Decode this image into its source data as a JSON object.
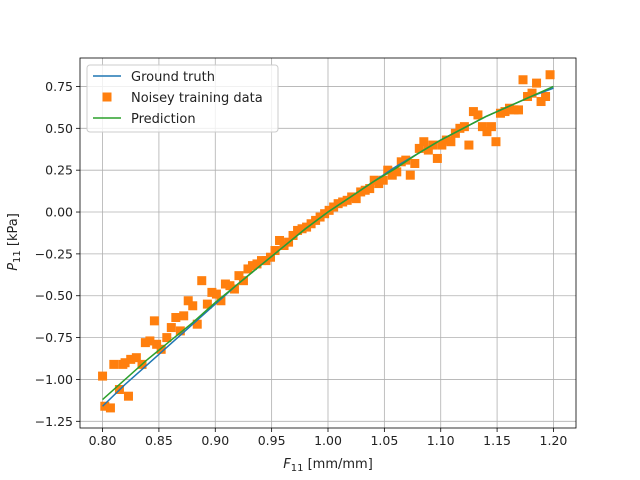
{
  "chart_data": {
    "type": "line",
    "xlabel_main": "F",
    "xlabel_sub": "11",
    "xlabel_unit": " [mm/mm]",
    "ylabel_main": "P",
    "ylabel_sub": "11",
    "ylabel_unit": " [kPa]",
    "xlim": [
      0.78,
      1.22
    ],
    "ylim": [
      -1.29,
      0.92
    ],
    "xticks": [
      0.8,
      0.85,
      0.9,
      0.95,
      1.0,
      1.05,
      1.1,
      1.15,
      1.2
    ],
    "xtick_labels": [
      "0.80",
      "0.85",
      "0.90",
      "0.95",
      "1.00",
      "1.05",
      "1.10",
      "1.15",
      "1.20"
    ],
    "yticks": [
      -1.25,
      -1.0,
      -0.75,
      -0.5,
      -0.25,
      0.0,
      0.25,
      0.5,
      0.75
    ],
    "ytick_labels": [
      "−1.25",
      "−1.00",
      "−0.75",
      "−0.50",
      "−0.25",
      "0.00",
      "0.25",
      "0.50",
      "0.75"
    ],
    "grid": true,
    "legend_position": "top-left",
    "series": [
      {
        "name": "Ground truth",
        "style": "line",
        "color": "#1f77b4",
        "x": [
          0.8,
          0.82,
          0.84,
          0.86,
          0.88,
          0.9,
          0.92,
          0.94,
          0.96,
          0.98,
          1.0,
          1.02,
          1.04,
          1.06,
          1.08,
          1.1,
          1.12,
          1.14,
          1.16,
          1.18,
          1.2
        ],
        "y": [
          -1.16,
          -1.03,
          -0.91,
          -0.79,
          -0.67,
          -0.55,
          -0.43,
          -0.32,
          -0.21,
          -0.1,
          0.0,
          0.09,
          0.18,
          0.27,
          0.35,
          0.43,
          0.5,
          0.57,
          0.63,
          0.69,
          0.74
        ]
      },
      {
        "name": "Noisey training data",
        "style": "markers",
        "color": "#ff7f0e",
        "x": [
          0.8,
          0.802,
          0.807,
          0.81,
          0.815,
          0.818,
          0.82,
          0.823,
          0.825,
          0.83,
          0.835,
          0.838,
          0.842,
          0.846,
          0.848,
          0.852,
          0.857,
          0.861,
          0.865,
          0.869,
          0.872,
          0.876,
          0.88,
          0.884,
          0.888,
          0.893,
          0.897,
          0.901,
          0.905,
          0.909,
          0.913,
          0.917,
          0.921,
          0.925,
          0.929,
          0.933,
          0.937,
          0.941,
          0.945,
          0.949,
          0.953,
          0.957,
          0.961,
          0.965,
          0.969,
          0.973,
          0.977,
          0.981,
          0.985,
          0.989,
          0.993,
          0.997,
          1.001,
          1.005,
          1.009,
          1.013,
          1.017,
          1.021,
          1.025,
          1.029,
          1.033,
          1.037,
          1.041,
          1.045,
          1.049,
          1.053,
          1.057,
          1.061,
          1.065,
          1.069,
          1.073,
          1.077,
          1.081,
          1.085,
          1.089,
          1.093,
          1.097,
          1.101,
          1.105,
          1.109,
          1.113,
          1.117,
          1.121,
          1.125,
          1.129,
          1.133,
          1.137,
          1.141,
          1.145,
          1.149,
          1.153,
          1.157,
          1.161,
          1.165,
          1.169,
          1.173,
          1.177,
          1.181,
          1.185,
          1.189,
          1.193,
          1.197
        ],
        "y": [
          -0.98,
          -1.16,
          -1.17,
          -0.91,
          -1.06,
          -0.91,
          -0.9,
          -1.1,
          -0.88,
          -0.87,
          -0.91,
          -0.78,
          -0.77,
          -0.65,
          -0.79,
          -0.82,
          -0.75,
          -0.69,
          -0.63,
          -0.71,
          -0.62,
          -0.53,
          -0.56,
          -0.67,
          -0.41,
          -0.55,
          -0.48,
          -0.49,
          -0.53,
          -0.43,
          -0.44,
          -0.46,
          -0.38,
          -0.41,
          -0.34,
          -0.32,
          -0.31,
          -0.29,
          -0.29,
          -0.27,
          -0.23,
          -0.17,
          -0.2,
          -0.18,
          -0.14,
          -0.11,
          -0.1,
          -0.09,
          -0.07,
          -0.05,
          -0.03,
          -0.01,
          0.01,
          0.03,
          0.05,
          0.06,
          0.07,
          0.09,
          0.08,
          0.12,
          0.13,
          0.14,
          0.19,
          0.17,
          0.19,
          0.25,
          0.22,
          0.24,
          0.3,
          0.31,
          0.22,
          0.29,
          0.38,
          0.42,
          0.37,
          0.4,
          0.32,
          0.4,
          0.43,
          0.42,
          0.47,
          0.5,
          0.51,
          0.4,
          0.6,
          0.58,
          0.51,
          0.48,
          0.51,
          0.42,
          0.59,
          0.6,
          0.62,
          0.61,
          0.61,
          0.79,
          0.69,
          0.71,
          0.77,
          0.66,
          0.69,
          0.82
        ]
      },
      {
        "name": "Prediction",
        "style": "line",
        "color": "#2ca02c",
        "x": [
          0.8,
          0.82,
          0.84,
          0.86,
          0.88,
          0.9,
          0.92,
          0.94,
          0.96,
          0.98,
          1.0,
          1.02,
          1.04,
          1.06,
          1.08,
          1.1,
          1.12,
          1.14,
          1.16,
          1.18,
          1.2
        ],
        "y": [
          -1.12,
          -1.0,
          -0.88,
          -0.77,
          -0.66,
          -0.54,
          -0.43,
          -0.32,
          -0.21,
          -0.1,
          0.0,
          0.09,
          0.18,
          0.26,
          0.35,
          0.43,
          0.5,
          0.57,
          0.63,
          0.69,
          0.75
        ]
      }
    ]
  }
}
